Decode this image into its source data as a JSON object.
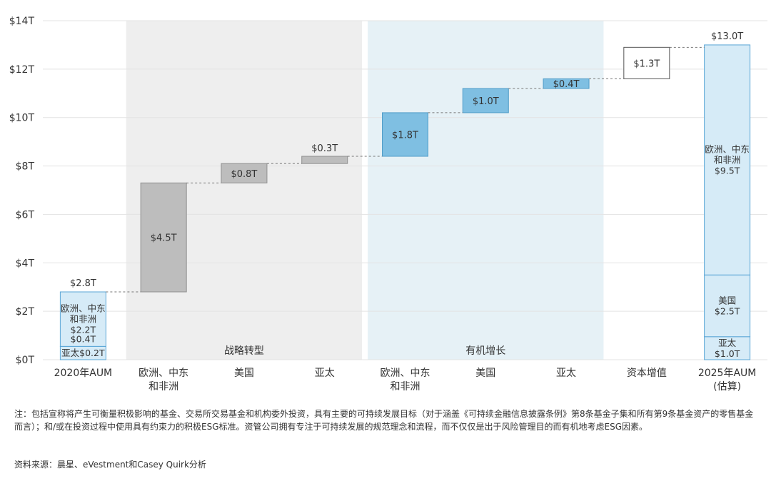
{
  "chart_data": {
    "type": "waterfall",
    "ylim": [
      0,
      14
    ],
    "yticks": [
      {
        "value": 0,
        "label": "$0T"
      },
      {
        "value": 2,
        "label": "$2T"
      },
      {
        "value": 4,
        "label": "$4T"
      },
      {
        "value": 6,
        "label": "$6T"
      },
      {
        "value": 8,
        "label": "$8T"
      },
      {
        "value": 10,
        "label": "$10T"
      },
      {
        "value": 12,
        "label": "$12T"
      },
      {
        "value": 14,
        "label": "$14T"
      }
    ],
    "categories": [
      [
        "2020年AUM"
      ],
      [
        "欧洲、中东",
        "和非洲"
      ],
      [
        "美国"
      ],
      [
        "亚太"
      ],
      [
        "欧洲、中东",
        "和非洲"
      ],
      [
        "美国"
      ],
      [
        "亚太"
      ],
      [
        "资本增值"
      ],
      [
        "2025年AUM",
        "(估算)"
      ]
    ],
    "groups": [
      {
        "label": "战略转型",
        "from": 1,
        "to": 3,
        "color": "#eeeeee"
      },
      {
        "label": "有机增长",
        "from": 4,
        "to": 6,
        "color": "#e6f1f6"
      }
    ],
    "bars": [
      {
        "kind": "total",
        "total_label": "$2.8T",
        "value": 2.8,
        "segments": [
          {
            "lines": [
              "亚太$0.2T"
            ],
            "value": 0.55
          },
          {
            "lines": [
              "欧洲、中东",
              "和非洲",
              "$2.2T"
            ],
            "value": 2.25
          }
        ],
        "extra_lines": [
          "$0.4T"
        ]
      },
      {
        "kind": "step",
        "start": 2.8,
        "value": 4.5,
        "label": "$4.5T",
        "style": "gray"
      },
      {
        "kind": "step",
        "start": 7.3,
        "value": 0.8,
        "label": "$0.8T",
        "style": "gray"
      },
      {
        "kind": "step",
        "start": 8.1,
        "value": 0.3,
        "label": "$0.3T",
        "style": "gray"
      },
      {
        "kind": "step",
        "start": 8.4,
        "value": 1.8,
        "label": "$1.8T",
        "style": "blue"
      },
      {
        "kind": "step",
        "start": 10.2,
        "value": 1.0,
        "label": "$1.0T",
        "style": "blue"
      },
      {
        "kind": "step",
        "start": 11.2,
        "value": 0.4,
        "label": "$0.4T",
        "style": "blue"
      },
      {
        "kind": "step",
        "start": 11.6,
        "value": 1.3,
        "label": "$1.3T",
        "style": "white"
      },
      {
        "kind": "total",
        "total_label": "$13.0T",
        "value": 13.0,
        "segments": [
          {
            "lines": [
              "亚太",
              "$1.0T"
            ],
            "value": 0.95
          },
          {
            "lines": [
              "美国",
              "$2.5T"
            ],
            "value": 2.55
          },
          {
            "lines": [
              "欧洲、中东",
              "和非洲",
              "$9.5T"
            ],
            "value": 9.5
          }
        ]
      }
    ],
    "colors": {
      "gray_fill": "#bdbdbd",
      "gray_stroke": "#8f8f8f",
      "blue_fill": "#7fbfe2",
      "blue_stroke": "#4f9cc8",
      "total_fill": "#d6ebf7",
      "total_stroke": "#5aa6d6",
      "connector": "#777777",
      "grid": "#e3e3e3"
    }
  },
  "footnote": "注：包括宣称将产生可衡量积极影响的基金、交易所交易基金和机构委外投资，具有主要的可持续发展目标（对于涵盖《可持续金融信息披露条例》第8条基金子集和所有第9条基金资产的零售基金而言）；和/或在投资过程中使用具有约束力的积极ESG标准。资管公司拥有专注于可持续发展的规范理念和流程，而不仅仅是出于风险管理目的而有机地考虑ESG因素。",
  "source": "资料来源：晨星、eVestment和Casey Quirk分析"
}
